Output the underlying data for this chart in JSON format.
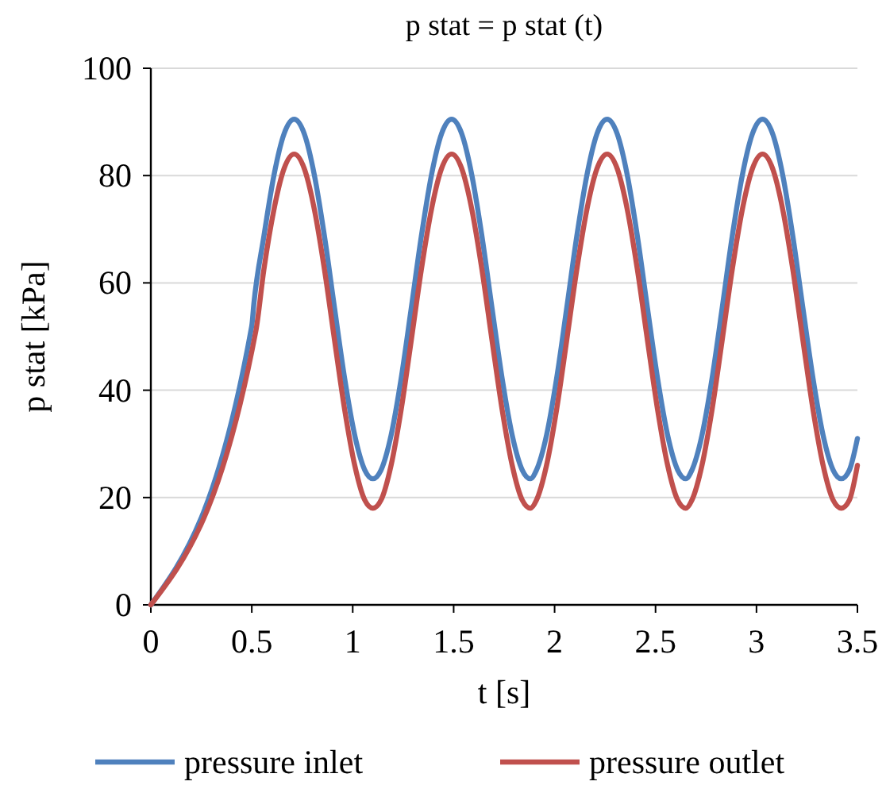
{
  "chart_data": {
    "type": "line",
    "title": "p stat = p stat (t)",
    "xlabel": "t [s]",
    "ylabel": "p stat [kPa]",
    "xlim": [
      0,
      3.5
    ],
    "xticks": [
      0,
      0.5,
      1,
      1.5,
      2,
      2.5,
      3,
      3.5
    ],
    "ylim": [
      0,
      100
    ],
    "yticks": [
      0,
      20,
      40,
      60,
      80,
      100
    ],
    "grid": "y",
    "legend": "bottom",
    "marker": "none",
    "line_style": "solid",
    "series": [
      {
        "name": "pressure inlet",
        "color": "#4f81bd",
        "x": [
          0,
          0.5,
          0.51,
          0.56,
          0.61,
          0.66,
          0.71,
          0.76,
          0.81,
          0.86,
          0.91,
          0.96,
          1.01,
          1.06,
          1.1,
          1.14,
          1.19,
          1.24,
          1.29,
          1.34,
          1.39,
          1.44,
          1.49,
          1.54,
          1.59,
          1.64,
          1.69,
          1.74,
          1.79,
          1.84,
          1.88,
          1.91,
          1.96,
          2.01,
          2.06,
          2.11,
          2.16,
          2.21,
          2.26,
          2.31,
          2.36,
          2.41,
          2.46,
          2.51,
          2.56,
          2.61,
          2.65,
          2.68,
          2.73,
          2.78,
          2.83,
          2.88,
          2.93,
          2.98,
          3.03,
          3.08,
          3.13,
          3.18,
          3.23,
          3.28,
          3.33,
          3.38,
          3.42,
          3.46,
          3.5
        ],
        "values": [
          0,
          52,
          56,
          68.7,
          80.1,
          87.8,
          90.5,
          87.8,
          80.1,
          68.7,
          55.3,
          42.2,
          31.6,
          25.1,
          23.5,
          25.1,
          31.6,
          42.2,
          55.3,
          68.7,
          80.1,
          87.8,
          90.5,
          87.8,
          80.1,
          68.7,
          55.3,
          42.2,
          31.6,
          25.1,
          23.5,
          25.1,
          31.6,
          42.2,
          55.3,
          68.7,
          80.1,
          87.8,
          90.5,
          87.8,
          80.1,
          68.7,
          55.3,
          42.2,
          31.6,
          25.1,
          23.5,
          25.1,
          31.6,
          42.2,
          55.3,
          68.7,
          80.1,
          87.8,
          90.5,
          87.8,
          80.1,
          68.7,
          55.3,
          42.2,
          31.6,
          25.1,
          23.5,
          25.1,
          31
        ]
      },
      {
        "name": "pressure outlet",
        "color": "#c0504d",
        "x": [
          0,
          0.52,
          0.56,
          0.61,
          0.66,
          0.71,
          0.76,
          0.81,
          0.86,
          0.91,
          0.96,
          1.01,
          1.06,
          1.1,
          1.14,
          1.19,
          1.24,
          1.29,
          1.34,
          1.39,
          1.44,
          1.49,
          1.54,
          1.59,
          1.64,
          1.69,
          1.74,
          1.79,
          1.84,
          1.88,
          1.91,
          1.96,
          2.01,
          2.06,
          2.11,
          2.16,
          2.21,
          2.26,
          2.31,
          2.36,
          2.41,
          2.46,
          2.51,
          2.56,
          2.61,
          2.65,
          2.68,
          2.73,
          2.78,
          2.83,
          2.88,
          2.93,
          2.98,
          3.03,
          3.08,
          3.13,
          3.18,
          3.23,
          3.28,
          3.33,
          3.38,
          3.42,
          3.46,
          3.5
        ],
        "values": [
          0,
          51,
          62.5,
          73.7,
          81.3,
          84,
          81.3,
          73.7,
          62.5,
          49.3,
          36.4,
          26,
          19.5,
          18,
          19.5,
          26,
          36.4,
          49.3,
          62.5,
          73.7,
          81.3,
          84,
          81.3,
          73.7,
          62.5,
          49.3,
          36.4,
          26,
          19.5,
          18,
          19.5,
          26,
          36.4,
          49.3,
          62.5,
          73.7,
          81.3,
          84,
          81.3,
          73.7,
          62.5,
          49.3,
          36.4,
          26,
          19.5,
          18,
          19.5,
          26,
          36.4,
          49.3,
          62.5,
          73.7,
          81.3,
          84,
          81.3,
          73.7,
          62.5,
          49.3,
          36.4,
          26,
          19.5,
          18,
          19.5,
          26
        ]
      }
    ]
  }
}
